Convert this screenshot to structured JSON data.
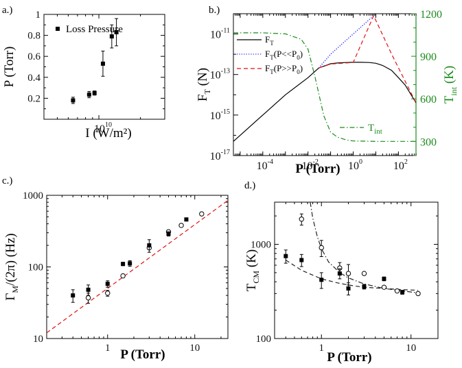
{
  "chart_data": [
    {
      "panel_label": "a.)",
      "type": "scatter",
      "xlabel": "I (W/m²)",
      "ylabel": "P (Torr)",
      "x_scale": "log",
      "xlim": [
        4000000000.0,
        30000000000.0
      ],
      "ylim": [
        0,
        1
      ],
      "x_ticks": [
        {
          "value": 10000000000.0,
          "label": "10",
          "exp": "10"
        }
      ],
      "y_ticks": [
        {
          "value": 0.2,
          "label": "0.2"
        },
        {
          "value": 0.4,
          "label": "0.4"
        },
        {
          "value": 0.6,
          "label": "0.6"
        },
        {
          "value": 0.8,
          "label": "0.8"
        },
        {
          "value": 1,
          "label": "1"
        }
      ],
      "legend": {
        "placement": "top-left",
        "entries": [
          "Loss Pressure"
        ]
      },
      "series": [
        {
          "name": "Loss Pressure",
          "marker": "filled-square",
          "x": [
            6500000000.0,
            8500000000.0,
            9300000000.0,
            10700000000.0,
            12400000000.0,
            13400000000.0
          ],
          "y": [
            0.18,
            0.235,
            0.25,
            0.53,
            0.79,
            0.83
          ],
          "err": [
            0.03,
            0.03,
            0.02,
            0.12,
            0.11,
            0.13
          ]
        }
      ]
    },
    {
      "panel_label": "b.)",
      "type": "line",
      "xlabel": "P (Torr)",
      "ylabel": "F",
      "ylabel_sub": "T",
      "ylabel_unit": " (N)",
      "y2label": "T",
      "y2label_sub": "int",
      "y2label_unit": " (K)",
      "x_scale": "log",
      "y_scale": "log",
      "xlim": [
        5e-06,
        600
      ],
      "ylim": [
        1e-17,
        1e-10
      ],
      "y2lim": [
        200,
        1200
      ],
      "x_ticks": [
        {
          "value": 0.0001,
          "label": "10",
          "exp": "-4"
        },
        {
          "value": 0.01,
          "label": "10",
          "exp": "-2"
        },
        {
          "value": 1,
          "label": "10",
          "exp": "0"
        },
        {
          "value": 100,
          "label": "10",
          "exp": "2"
        }
      ],
      "y_ticks": [
        {
          "value": 1e-17,
          "label": "10",
          "exp": "-17"
        },
        {
          "value": 1e-15,
          "label": "10",
          "exp": "-15"
        },
        {
          "value": 1e-13,
          "label": "10",
          "exp": "-13"
        },
        {
          "value": 1e-11,
          "label": "10",
          "exp": "-11"
        }
      ],
      "y2_ticks": [
        300,
        600,
        900,
        1200
      ],
      "legend": {
        "placement": "top-left",
        "entries": [
          {
            "label": "F",
            "sub": "T",
            "after": ""
          },
          {
            "label": "F",
            "sub": "T",
            "after": "(P<<P",
            "sub2": "0",
            "after2": ")"
          },
          {
            "label": "F",
            "sub": "T",
            "after": "(P>>P",
            "sub2": "0",
            "after2": ")"
          }
        ]
      },
      "annotation": {
        "label": "T",
        "sub": "int"
      },
      "series": [
        {
          "name": "F_T",
          "style": "solid",
          "color": "#000000",
          "x": [
            5e-06,
            1e-05,
            0.0001,
            0.001,
            0.01,
            0.03,
            0.1,
            0.2,
            0.5,
            1,
            2,
            5,
            10,
            20,
            50,
            100,
            200,
            600
          ],
          "y": [
            5e-17,
            1e-16,
            1e-15,
            1e-14,
            7e-14,
            2.1e-13,
            3.4e-13,
            3.7e-13,
            3.9e-13,
            4e-13,
            4e-13,
            3.9e-13,
            3.6e-13,
            2.8e-13,
            1.6e-13,
            7e-14,
            3e-14,
            4e-15
          ]
        },
        {
          "name": "F_T(P<<P_0)",
          "style": "dotted",
          "color": "#1f1fff",
          "x": [
            0.03,
            0.1,
            1,
            8
          ],
          "y": [
            2.1e-13,
            1e-12,
            1e-11,
            8e-11
          ]
        },
        {
          "name": "F_T(P>>P_0)",
          "style": "dashed",
          "color": "#e01010",
          "x": [
            0.03,
            0.1,
            1,
            8,
            50,
            600
          ],
          "y": [
            2.1e-13,
            3.3e-13,
            3.9e-13,
            8e-11,
            1e-12,
            4e-15
          ]
        },
        {
          "name": "T_int",
          "axis": "right",
          "style": "dashdot",
          "color": "#1a8a1a",
          "x": [
            5e-06,
            0.0001,
            0.001,
            0.005,
            0.01,
            0.02,
            0.05,
            0.1,
            0.2,
            0.5,
            1,
            10,
            600
          ],
          "y": [
            1065,
            1065,
            1058,
            1020,
            950,
            760,
            480,
            365,
            330,
            310,
            303,
            300,
            300
          ]
        }
      ]
    },
    {
      "panel_label": "c.)",
      "type": "scatter",
      "xlabel": "P (Torr)",
      "ylabel": "Γ",
      "ylabel_sub": "M",
      "ylabel_unit": "/(2π) (Hz)",
      "x_scale": "log",
      "y_scale": "log",
      "xlim": [
        0.2,
        24
      ],
      "ylim": [
        10,
        1000
      ],
      "x_ticks": [
        {
          "value": 1,
          "label": "1"
        },
        {
          "value": 10,
          "label": "10"
        }
      ],
      "y_ticks": [
        {
          "value": 10,
          "label": "10"
        },
        {
          "value": 100,
          "label": "100"
        },
        {
          "value": 1000,
          "label": "1000"
        }
      ],
      "series": [
        {
          "name": "filled",
          "marker": "filled-square",
          "x": [
            0.4,
            0.6,
            1.0,
            1.5,
            1.8,
            3.0,
            5.0,
            8.0
          ],
          "y": [
            40,
            48,
            58,
            110,
            112,
            200,
            290,
            460
          ],
          "err": [
            8,
            8,
            6,
            6,
            10,
            40,
            20,
            20
          ]
        },
        {
          "name": "open",
          "marker": "open-circle",
          "x": [
            0.6,
            1.0,
            1.5,
            3.0,
            5.0,
            7.0,
            12.0
          ],
          "y": [
            37,
            43,
            75,
            185,
            310,
            380,
            550
          ],
          "err": [
            6,
            4,
            4,
            8,
            15,
            15,
            15
          ]
        },
        {
          "name": "fit",
          "style": "dashed",
          "color": "#e01010",
          "x": [
            0.2,
            24
          ],
          "y": [
            12,
            850
          ]
        }
      ]
    },
    {
      "panel_label": "d.)",
      "type": "scatter",
      "xlabel": "P (Torr)",
      "ylabel": "T",
      "ylabel_sub": "CM",
      "ylabel_unit": " (K)",
      "x_scale": "log",
      "y_scale": "log",
      "xlim": [
        0.3,
        20
      ],
      "ylim": [
        100,
        2800
      ],
      "x_ticks": [
        {
          "value": 1,
          "label": "1"
        },
        {
          "value": 10,
          "label": "10"
        }
      ],
      "y_ticks": [
        {
          "value": 100,
          "label": "100"
        },
        {
          "value": 1000,
          "label": "1000"
        }
      ],
      "series": [
        {
          "name": "filled",
          "marker": "filled-square",
          "x": [
            0.4,
            0.6,
            1.0,
            1.6,
            2.0,
            3.0,
            5.0,
            8.0
          ],
          "y": [
            750,
            680,
            420,
            490,
            340,
            355,
            430,
            310
          ],
          "err": [
            120,
            100,
            80,
            60,
            50,
            20,
            20,
            15
          ]
        },
        {
          "name": "open",
          "marker": "open-circle",
          "x": [
            0.6,
            1.0,
            1.6,
            2.0,
            3.0,
            5.0,
            7.0,
            12.0
          ],
          "y": [
            1850,
            920,
            560,
            490,
            490,
            350,
            320,
            300
          ],
          "err": [
            250,
            180,
            80,
            120,
            10,
            10,
            10,
            10
          ]
        },
        {
          "name": "dashed fit",
          "style": "dashed",
          "color": "#222222",
          "x": [
            0.4,
            0.6,
            1.0,
            1.5,
            2.0,
            3.0,
            5.0,
            8.0,
            12.0
          ],
          "y": [
            680,
            530,
            430,
            390,
            370,
            350,
            340,
            330,
            325
          ]
        },
        {
          "name": "dash-dot fit",
          "style": "dashdot",
          "color": "#222222",
          "x": [
            0.75,
            0.8,
            0.9,
            1.0,
            1.2,
            1.6,
            2.0,
            3.0,
            5.0,
            8.0,
            12.0
          ],
          "y": [
            2800,
            1900,
            1200,
            900,
            650,
            500,
            440,
            380,
            340,
            320,
            305
          ]
        }
      ]
    }
  ]
}
